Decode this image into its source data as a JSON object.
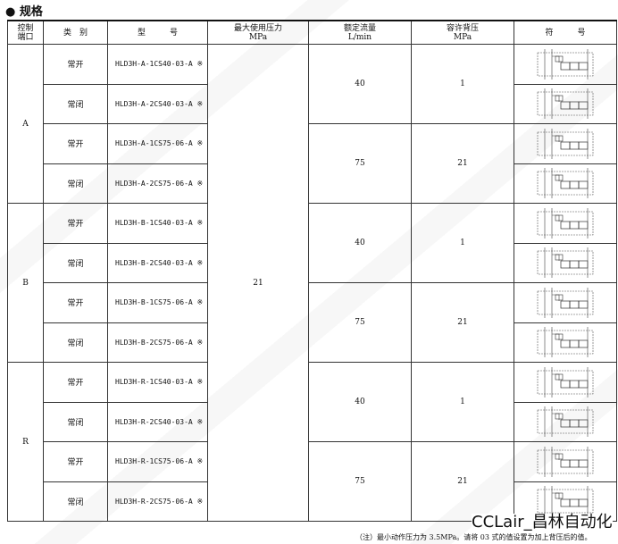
{
  "title": "● 规格",
  "headers": {
    "port": "控制\n端口",
    "type": "类　别",
    "model": "型　　　号",
    "pressure": "最大使用压力",
    "pressure_unit": "MPa",
    "flow": "额定流量",
    "flow_unit": "L/min",
    "back": "容许背压",
    "back_unit": "MPa",
    "symbol": "符　　　号"
  },
  "max_pressure": "21",
  "groups": [
    {
      "port": "A",
      "rows": [
        {
          "type": "常开",
          "model": "HLD3H-A-1CS40-03-A ※"
        },
        {
          "type": "常闭",
          "model": "HLD3H-A-2CS40-03-A ※"
        },
        {
          "type": "常开",
          "model": "HLD3H-A-1CS75-06-A ※"
        },
        {
          "type": "常闭",
          "model": "HLD3H-A-2CS75-06-A ※"
        }
      ],
      "flow": [
        "40",
        "75"
      ],
      "back": [
        "1",
        "21"
      ]
    },
    {
      "port": "B",
      "rows": [
        {
          "type": "常开",
          "model": "HLD3H-B-1CS40-03-A ※"
        },
        {
          "type": "常闭",
          "model": "HLD3H-B-2CS40-03-A ※"
        },
        {
          "type": "常开",
          "model": "HLD3H-B-1CS75-06-A ※"
        },
        {
          "type": "常闭",
          "model": "HLD3H-B-2CS75-06-A ※"
        }
      ],
      "flow": [
        "40",
        "75"
      ],
      "back": [
        "1",
        "21"
      ]
    },
    {
      "port": "R",
      "rows": [
        {
          "type": "常开",
          "model": "HLD3H-R-1CS40-03-A ※"
        },
        {
          "type": "常闭",
          "model": "HLD3H-R-2CS40-03-A ※"
        },
        {
          "type": "常开",
          "model": "HLD3H-R-1CS75-06-A ※"
        },
        {
          "type": "常闭",
          "model": "HLD3H-R-2CS75-06-A ※"
        }
      ],
      "flow": [
        "40",
        "75"
      ],
      "back": [
        "1",
        "21"
      ]
    }
  ],
  "watermark": "CCLair",
  "brand": "CCLair_昌林自动化",
  "note": "（注）最小动作压力为 3.5MPa。请将 03 式的值设置为加上背压后的值。"
}
